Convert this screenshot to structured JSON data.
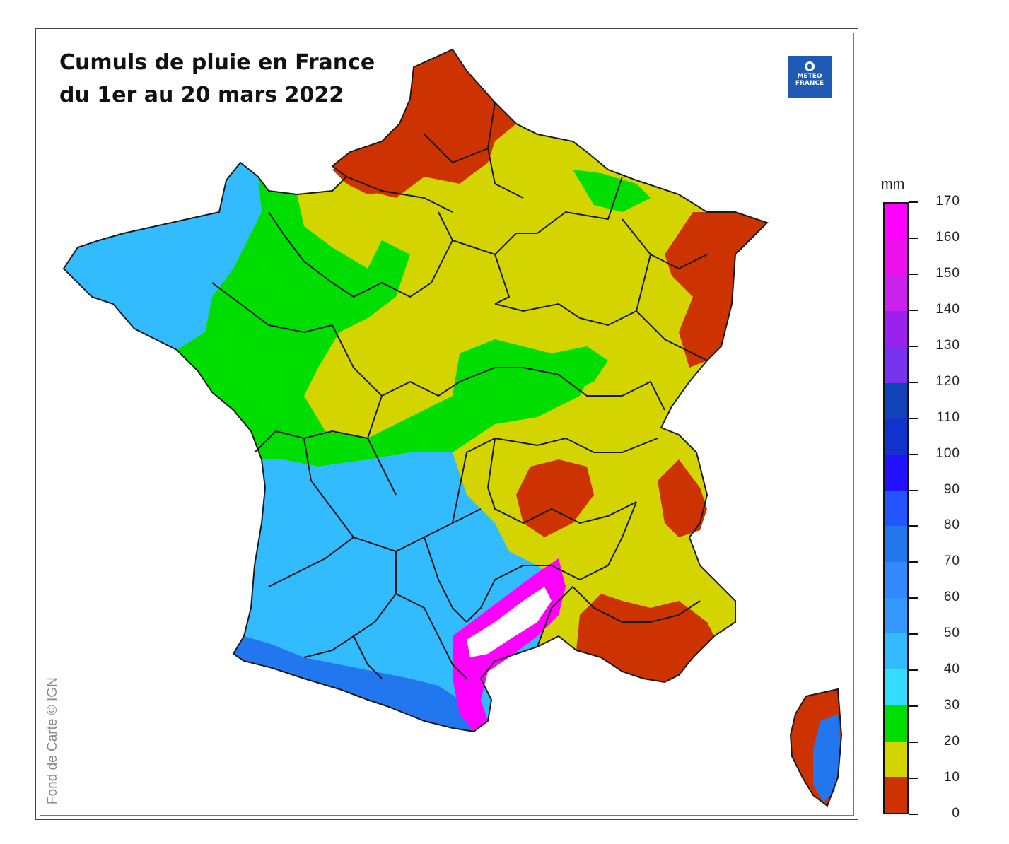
{
  "title": {
    "line1": "Cumuls de pluie en France",
    "line2": "du 1er au 20 mars 2022"
  },
  "logo": {
    "line1": "METEO",
    "line2": "FRANCE",
    "color": "#1f5bb5"
  },
  "credit": "Fond de Carte © IGN",
  "legend": {
    "unit": "mm",
    "ticks": [
      "0",
      "10",
      "20",
      "30",
      "40",
      "50",
      "60",
      "70",
      "80",
      "90",
      "100",
      "110",
      "120",
      "130",
      "140",
      "150",
      "160",
      "170"
    ],
    "bands": [
      {
        "from": 0,
        "to": 10,
        "color": "#cc3300"
      },
      {
        "from": 10,
        "to": 20,
        "color": "#d4d400"
      },
      {
        "from": 20,
        "to": 30,
        "color": "#00dd00"
      },
      {
        "from": 30,
        "to": 40,
        "color": "#33ddff"
      },
      {
        "from": 40,
        "to": 50,
        "color": "#33bbff"
      },
      {
        "from": 50,
        "to": 60,
        "color": "#3399ff"
      },
      {
        "from": 60,
        "to": 70,
        "color": "#3388ff"
      },
      {
        "from": 70,
        "to": 80,
        "color": "#2277ee"
      },
      {
        "from": 80,
        "to": 90,
        "color": "#2255ff"
      },
      {
        "from": 90,
        "to": 100,
        "color": "#2211ff"
      },
      {
        "from": 100,
        "to": 110,
        "color": "#1133cc"
      },
      {
        "from": 110,
        "to": 120,
        "color": "#1144bb"
      },
      {
        "from": 120,
        "to": 130,
        "color": "#7733ee"
      },
      {
        "from": 130,
        "to": 140,
        "color": "#9922ee"
      },
      {
        "from": 140,
        "to": 150,
        "color": "#cc22ee"
      },
      {
        "from": 150,
        "to": 160,
        "color": "#ee11ee"
      },
      {
        "from": 160,
        "to": 170,
        "color": "#ff00ff"
      }
    ]
  },
  "regions": [
    {
      "name": "mainland-base",
      "color": "#d4d400"
    },
    {
      "name": "nord-pas-de-calais",
      "color": "#cc3300"
    },
    {
      "name": "normandie-east",
      "color": "#cc3300"
    },
    {
      "name": "alsace",
      "color": "#cc3300"
    },
    {
      "name": "bretagne-west",
      "color": "#33bbff"
    },
    {
      "name": "west-green",
      "color": "#00dd00"
    },
    {
      "name": "southwest",
      "color": "#33bbff"
    },
    {
      "name": "pyrenees",
      "color": "#2277ee"
    },
    {
      "name": "herault-max",
      "color": "#ff00ff"
    },
    {
      "name": "herault-core",
      "color": "#ffffff"
    },
    {
      "name": "provence",
      "color": "#cc3300"
    },
    {
      "name": "alpes",
      "color": "#cc3300"
    },
    {
      "name": "rhone",
      "color": "#cc3300"
    },
    {
      "name": "lorraine-green",
      "color": "#00dd00"
    },
    {
      "name": "centre-green",
      "color": "#00dd00"
    },
    {
      "name": "corse-base",
      "color": "#cc3300"
    },
    {
      "name": "corse-east",
      "color": "#2277ee"
    }
  ]
}
